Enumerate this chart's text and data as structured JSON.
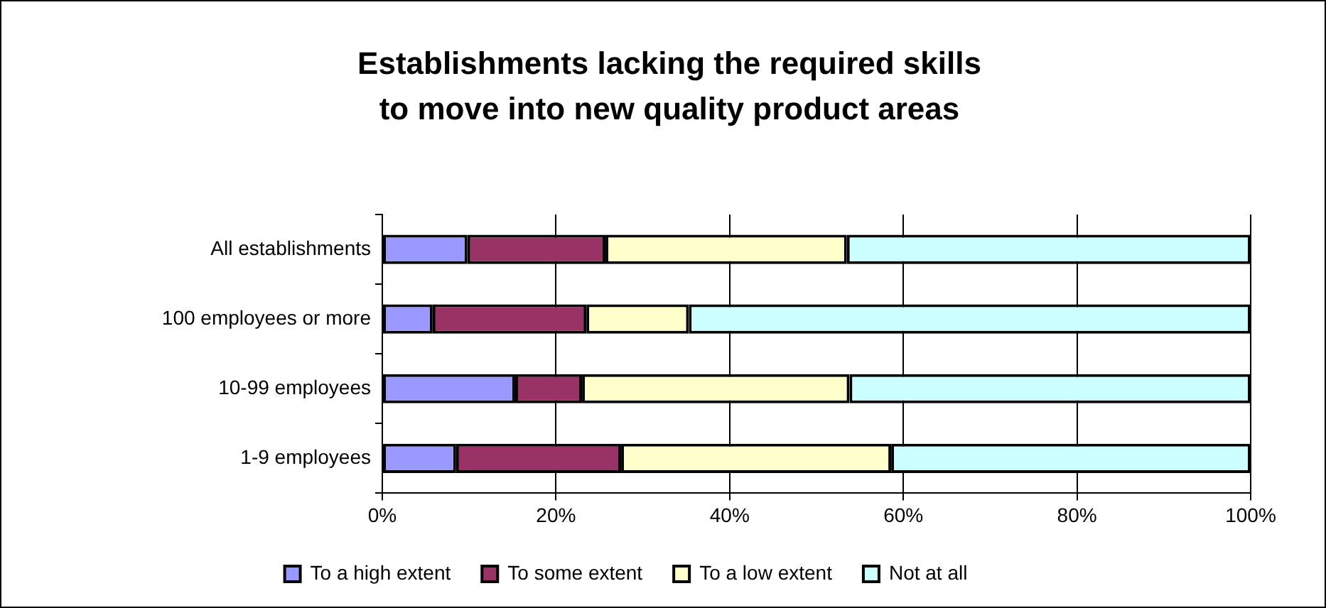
{
  "chart_data": {
    "type": "bar",
    "orientation": "horizontal",
    "stacked": true,
    "title": "Establishments lacking the required skills to move into new quality product areas",
    "categories": [
      "All establishments",
      "100 employees or more",
      "10-99 employees",
      "1-9 employees"
    ],
    "series": [
      {
        "name": "To a high extent",
        "color": "#9999ff",
        "values": [
          9.8,
          5.8,
          15.3,
          8.5
        ]
      },
      {
        "name": "To some extent",
        "color": "#993366",
        "values": [
          15.9,
          17.7,
          7.7,
          19.0
        ]
      },
      {
        "name": "To a low extent",
        "color": "#ffffcc",
        "values": [
          27.8,
          11.8,
          30.8,
          31.1
        ]
      },
      {
        "name": "Not at all",
        "color": "#ccffff",
        "values": [
          46.5,
          64.7,
          46.2,
          41.4
        ]
      }
    ],
    "xlim": [
      0,
      100
    ],
    "xticks": [
      {
        "value": 0,
        "label": "0%"
      },
      {
        "value": 20,
        "label": "20%"
      },
      {
        "value": 40,
        "label": "40%"
      },
      {
        "value": 60,
        "label": "60%"
      },
      {
        "value": 80,
        "label": "80%"
      },
      {
        "value": 100,
        "label": "100%"
      }
    ],
    "grid": "x",
    "legend": "bottom"
  }
}
